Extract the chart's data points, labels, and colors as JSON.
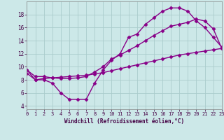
{
  "line1_x": [
    0,
    1,
    2,
    3,
    4,
    5,
    6,
    7,
    8,
    9,
    10,
    11,
    12,
    13,
    14,
    15,
    16,
    17,
    18,
    19,
    20,
    21,
    22,
    23
  ],
  "line1_y": [
    9.5,
    8.0,
    8.0,
    7.5,
    6.0,
    5.0,
    5.0,
    5.0,
    7.5,
    9.5,
    11.0,
    12.0,
    14.5,
    15.0,
    16.5,
    17.5,
    18.5,
    19.0,
    19.0,
    18.5,
    17.0,
    16.0,
    14.5,
    13.0
  ],
  "line2_x": [
    0,
    1,
    2,
    3,
    4,
    5,
    6,
    7,
    8,
    9,
    10,
    11,
    12,
    13,
    14,
    15,
    16,
    17,
    18,
    19,
    20,
    21,
    22,
    23
  ],
  "line2_y": [
    9.5,
    8.5,
    8.5,
    8.3,
    8.2,
    8.2,
    8.3,
    8.5,
    9.2,
    10.0,
    11.2,
    11.8,
    12.5,
    13.2,
    14.0,
    14.8,
    15.5,
    16.2,
    16.5,
    16.8,
    17.3,
    17.0,
    15.8,
    12.8
  ],
  "line3_x": [
    0,
    1,
    2,
    3,
    4,
    5,
    6,
    7,
    8,
    9,
    10,
    11,
    12,
    13,
    14,
    15,
    16,
    17,
    18,
    19,
    20,
    21,
    22,
    23
  ],
  "line3_y": [
    9.0,
    8.0,
    8.2,
    8.3,
    8.4,
    8.5,
    8.6,
    8.7,
    8.9,
    9.1,
    9.4,
    9.7,
    10.0,
    10.3,
    10.6,
    10.9,
    11.2,
    11.5,
    11.8,
    12.0,
    12.2,
    12.4,
    12.6,
    12.8
  ],
  "line_color": "#880088",
  "bg_color": "#cce8e8",
  "grid_color": "#aacccc",
  "xlabel": "Windchill (Refroidissement éolien,°C)",
  "xlim": [
    0,
    23
  ],
  "ylim": [
    3.5,
    20
  ],
  "xticks": [
    0,
    1,
    2,
    3,
    4,
    5,
    6,
    7,
    8,
    9,
    10,
    11,
    12,
    13,
    14,
    15,
    16,
    17,
    18,
    19,
    20,
    21,
    22,
    23
  ],
  "yticks": [
    4,
    6,
    8,
    10,
    12,
    14,
    16,
    18
  ],
  "marker": "D",
  "markersize": 2.5,
  "linewidth": 1.0
}
